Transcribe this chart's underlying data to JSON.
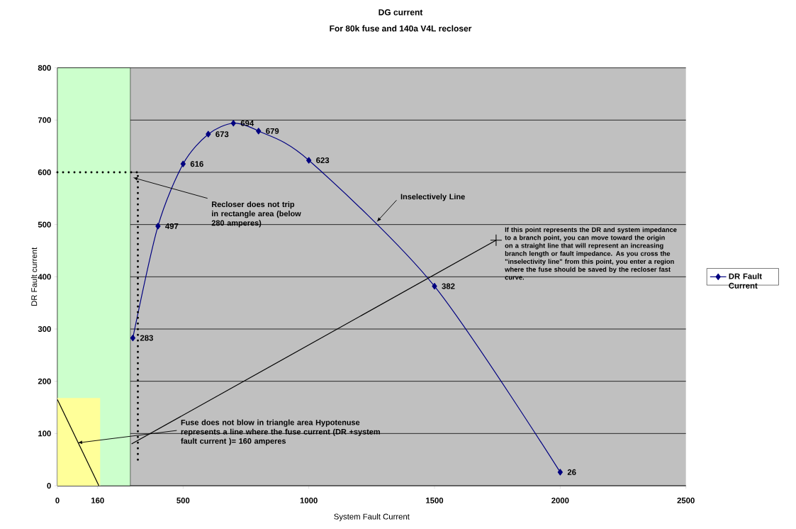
{
  "chart_data": {
    "type": "line",
    "title": "DG current",
    "subtitle": "For 80k fuse and 140a V4L recloser",
    "xlabel": "System Fault Current",
    "ylabel": "DR Fault  current",
    "x": [
      300,
      400,
      500,
      600,
      700,
      800,
      1000,
      1500,
      2000
    ],
    "series": [
      {
        "name": "DR Fault Current",
        "color": "#000080",
        "values": [
          283,
          497,
          616,
          673,
          694,
          679,
          623,
          382,
          26
        ],
        "value_labels": [
          "283",
          "497",
          "616",
          "673",
          "694",
          "679",
          "623",
          "382",
          "26"
        ]
      },
      {
        "type": "area",
        "color": "#ffff99",
        "x": [
          0,
          170
        ],
        "values": [
          168,
          168
        ],
        "marker": "none"
      },
      {
        "type": "line",
        "color": "#000000",
        "x": [
          0,
          165
        ],
        "values": [
          165,
          0
        ],
        "marker": "none"
      },
      {
        "type": "line",
        "color": "#000000",
        "x": [
          0,
          320
        ],
        "values": [
          600,
          600
        ],
        "marker": "none",
        "line_style": "dotted"
      },
      {
        "type": "line",
        "color": "#000000",
        "x": [
          320,
          320
        ],
        "values": [
          50,
          600
        ],
        "marker": "none",
        "line_style": "dotted"
      },
      {
        "type": "line",
        "color": "#000000",
        "x": [
          295,
          1745
        ],
        "values": [
          80,
          470
        ],
        "marker": "none"
      },
      {
        "type": "scatter",
        "color": "#000000",
        "x": [
          1745
        ],
        "values": [
          470
        ],
        "marker": "cross"
      }
    ],
    "bands": [
      {
        "axis": "x",
        "from": 0,
        "to": 290,
        "color": "#ccffcc"
      }
    ],
    "annotations": [
      {
        "text": "Recloser does not trip in rectangle area (below 280 amperes)",
        "x": 300,
        "y": 590
      },
      {
        "text": "Inselectively Line",
        "x": 1270,
        "y": 505
      },
      {
        "text": "If  this point represents the DR and system impedance to a branch point, you can move toward the origin on a straight line that will represent an increasing branch length or fault impedance.  As you cross the \"inselectivity line\" from this point, you enter a region where the fuse should be saved by the recloser fast curve.",
        "x": 1745,
        "y": 470
      },
      {
        "text": "Fuse does not blow in triangle area Hypotenuse represents a line where the fuse current (DR +system fault current )= 160 amperes",
        "x": 80,
        "y": 82
      }
    ],
    "xlim": [
      0,
      2500
    ],
    "ylim": [
      0,
      800
    ],
    "xticks": [
      0,
      160,
      500,
      1000,
      1500,
      2000,
      2500
    ],
    "yticks": [
      0,
      100,
      200,
      300,
      400,
      500,
      600,
      700,
      800
    ],
    "grid": "y",
    "legend": "right",
    "marker": "diamond",
    "line_style": "solid"
  }
}
